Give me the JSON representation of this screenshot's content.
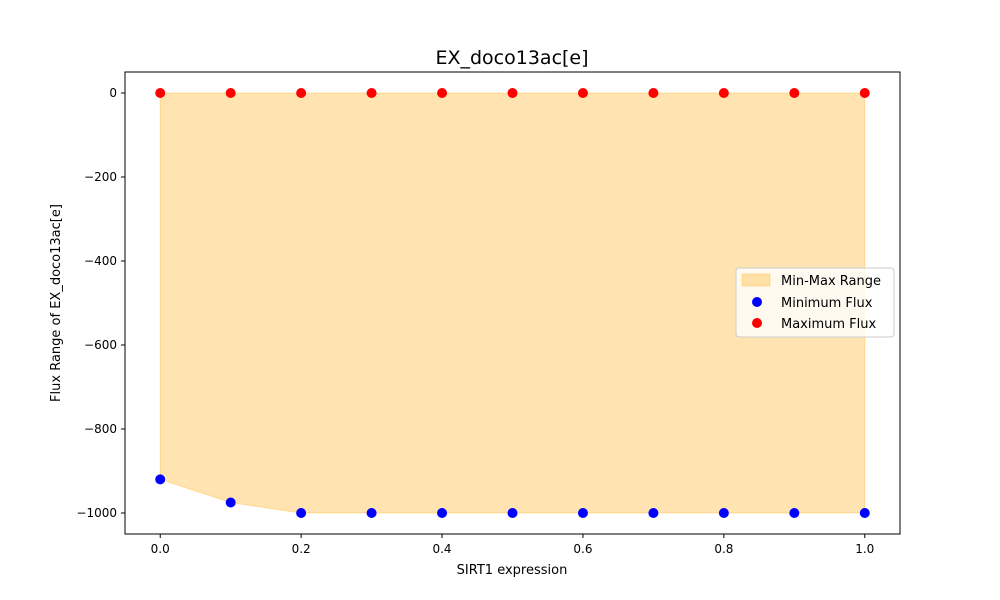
{
  "chart_data": {
    "type": "area",
    "title": "EX_doco13ac[e]",
    "xlabel": "SIRT1 expression",
    "ylabel": "Flux Range of EX_doco13ac[e]",
    "x": [
      0.0,
      0.1,
      0.2,
      0.3,
      0.4,
      0.5,
      0.6,
      0.7,
      0.8,
      0.9,
      1.0
    ],
    "xlim": [
      -0.05,
      1.05
    ],
    "ylim": [
      -1050,
      50
    ],
    "xticks": [
      0.0,
      0.2,
      0.4,
      0.6,
      0.8,
      1.0
    ],
    "xtick_labels": [
      "0.0",
      "0.2",
      "0.4",
      "0.6",
      "0.8",
      "1.0"
    ],
    "yticks": [
      0,
      -200,
      -400,
      -600,
      -800,
      -1000
    ],
    "ytick_labels": [
      "0",
      "−200",
      "−400",
      "−600",
      "−800",
      "−1000"
    ],
    "grid": false,
    "legend_position": "center-right",
    "series": [
      {
        "name": "Min-Max Range",
        "kind": "fill_between",
        "color": "#FFA500",
        "opacity": 0.3
      },
      {
        "name": "Minimum Flux",
        "kind": "scatter",
        "color": "#0000FF",
        "values": [
          -920,
          -975,
          -1000,
          -1000,
          -1000,
          -1000,
          -1000,
          -1000,
          -1000,
          -1000,
          -1000
        ]
      },
      {
        "name": "Maximum Flux",
        "kind": "scatter",
        "color": "#FF0000",
        "values": [
          0,
          0,
          0,
          0,
          0,
          0,
          0,
          0,
          0,
          0,
          0
        ]
      }
    ]
  }
}
